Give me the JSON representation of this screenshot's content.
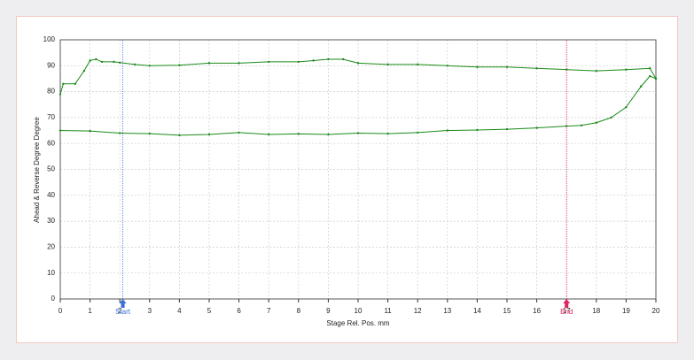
{
  "chart_data": {
    "type": "line",
    "xlabel": "Stage Rel. Pos.  mm",
    "ylabel": "Ahead & Reverse Degree  Degree",
    "xlim": [
      0,
      20
    ],
    "xticks": [
      0,
      1,
      2,
      3,
      4,
      5,
      6,
      7,
      8,
      9,
      10,
      11,
      12,
      13,
      14,
      15,
      16,
      17,
      18,
      19,
      20
    ],
    "ylim": [
      0,
      100
    ],
    "yticks": [
      0,
      10,
      20,
      30,
      40,
      50,
      60,
      70,
      80,
      90,
      100
    ],
    "grid": true,
    "series": [
      {
        "color": "#1a8a1a",
        "x": [
          0,
          0.1,
          0.5,
          0.8,
          1,
          1.2,
          1.4,
          1.8,
          2,
          2.5,
          3,
          4,
          5,
          6,
          7,
          8,
          8.5,
          9,
          9.5,
          10,
          11,
          12,
          13,
          14,
          15,
          16,
          17,
          18,
          19,
          19.8,
          20
        ],
        "values": [
          79,
          83,
          83,
          88,
          92,
          92.5,
          91.5,
          91.5,
          91.2,
          90.5,
          90,
          90.2,
          91,
          91,
          91.5,
          91.5,
          92,
          92.5,
          92.5,
          91,
          90.5,
          90.5,
          90,
          89.5,
          89.5,
          89,
          88.5,
          88,
          88.5,
          89,
          85
        ]
      },
      {
        "color": "#1a8a1a",
        "x": [
          0,
          1,
          2,
          3,
          4,
          5,
          6,
          7,
          8,
          9,
          10,
          11,
          12,
          13,
          14,
          15,
          16,
          17,
          17.5,
          18,
          18.5,
          19,
          19.5,
          19.8,
          20
        ],
        "values": [
          65,
          64.8,
          64,
          63.8,
          63.2,
          63.5,
          64.2,
          63.5,
          63.7,
          63.5,
          64,
          63.8,
          64.2,
          65,
          65.2,
          65.5,
          66,
          66.7,
          67,
          68,
          70,
          74,
          82,
          86,
          85
        ]
      }
    ],
    "markers": [
      {
        "label": "Start",
        "value": 2.1,
        "color": "#3a6fd8"
      },
      {
        "label": "End",
        "value": 17,
        "color": "#e0245e"
      }
    ]
  }
}
